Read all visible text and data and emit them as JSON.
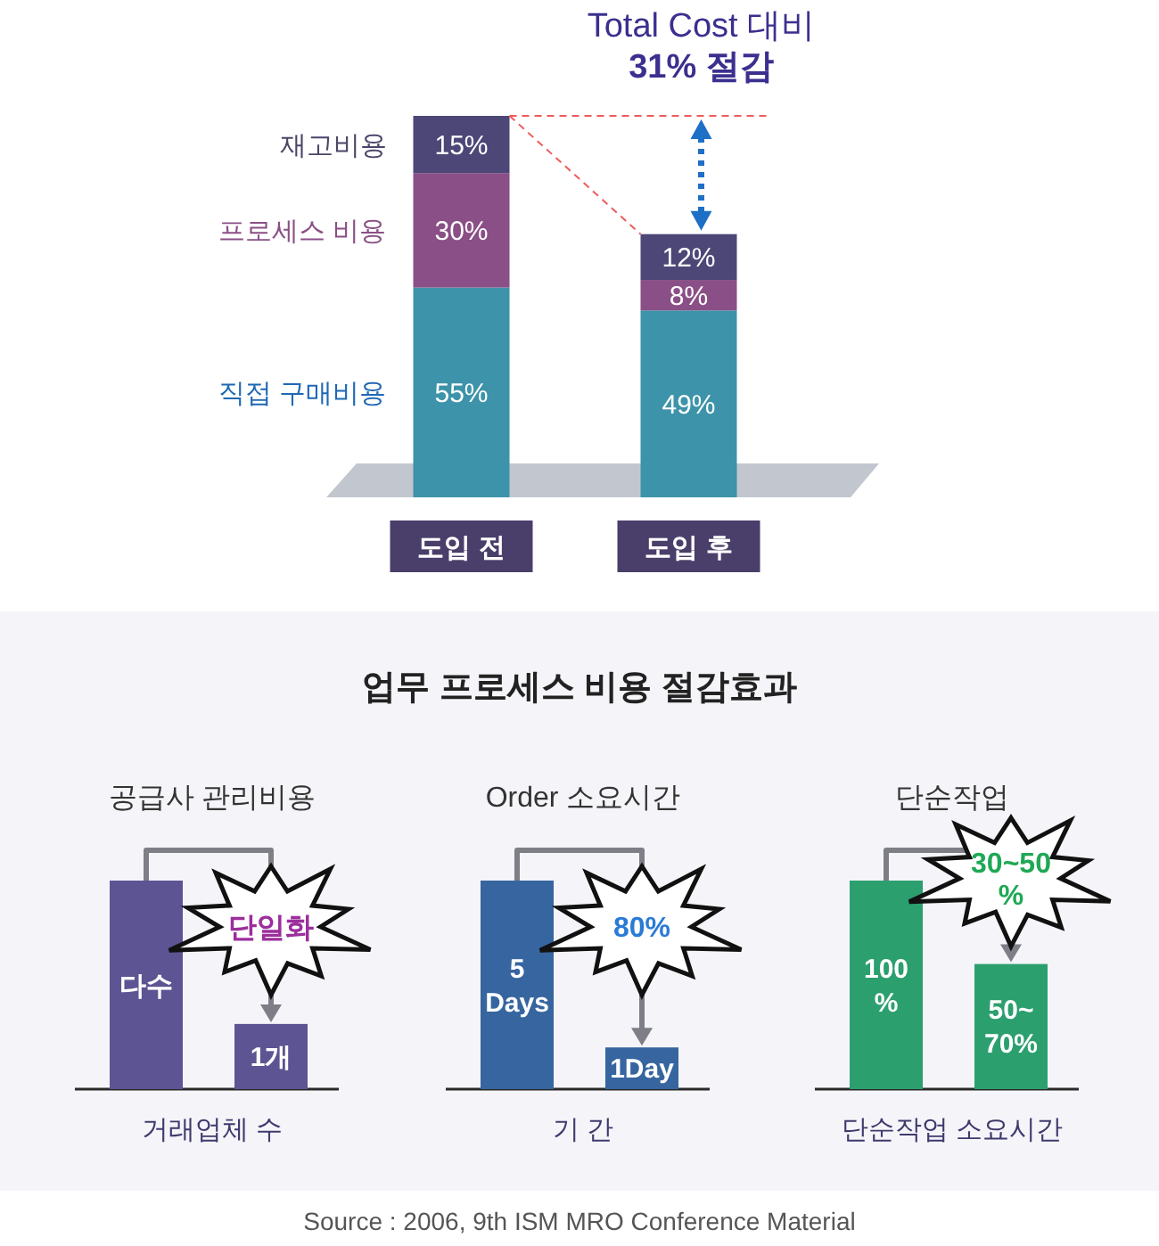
{
  "chart_data": [
    {
      "type": "bar",
      "stacked": true,
      "categories": [
        "도입 전",
        "도입 후"
      ],
      "series": [
        {
          "name": "직접 구매비용",
          "color": "#3d93a9",
          "values": [
            55,
            49
          ],
          "value_labels": [
            "55%",
            "49%"
          ]
        },
        {
          "name": "프로세스 비용",
          "color": "#8a4f86",
          "values": [
            30,
            8
          ],
          "value_labels": [
            "30%",
            "8%"
          ]
        },
        {
          "name": "재고비용",
          "color": "#4c4777",
          "values": [
            15,
            12
          ],
          "value_labels": [
            "15%",
            "12%"
          ]
        }
      ],
      "ref_lines": [
        {
          "axis": "y",
          "value": 100,
          "color": "#ef5b5b",
          "line_style": "dashed"
        }
      ],
      "annotations": [
        {
          "text": "Total Cost 대비\n31% 절감",
          "x": "도입 후",
          "y": 100
        }
      ]
    },
    {
      "type": "other",
      "title": "업무 프로세스 비용 절감효과"
    },
    {
      "type": "bar",
      "title": "공급사 관리비용",
      "xlabel": "거래업체 수",
      "categories": [
        null,
        null
      ],
      "values": [
        3.2,
        1
      ],
      "value_labels": [
        "다수",
        "1개"
      ],
      "colors": [
        "#5d5494",
        "#5d5494"
      ],
      "annotations": [
        "단일화"
      ]
    },
    {
      "type": "bar",
      "title": "Order 소요시간",
      "xlabel": "기 간",
      "categories": [
        null,
        null
      ],
      "values": [
        5,
        1
      ],
      "value_labels": [
        "5\nDays",
        "1Day"
      ],
      "colors": [
        "#36659f",
        "#36659f"
      ],
      "annotations": [
        "80%"
      ]
    },
    {
      "type": "bar",
      "title": "단순작업",
      "xlabel": "단순작업 소요시간",
      "categories": [
        null,
        null
      ],
      "values": [
        100,
        60
      ],
      "value_labels": [
        "100\n%",
        null
      ],
      "colors": [
        "#2c9f6e",
        "#2c9f6e"
      ],
      "annotations": [
        "30~50\n%",
        {
          "text": "50~\n70%",
          "y": 60
        }
      ]
    },
    {
      "type": "other",
      "annotations": [
        "Source : 2006, 9th ISM MRO Conference Material"
      ]
    }
  ]
}
